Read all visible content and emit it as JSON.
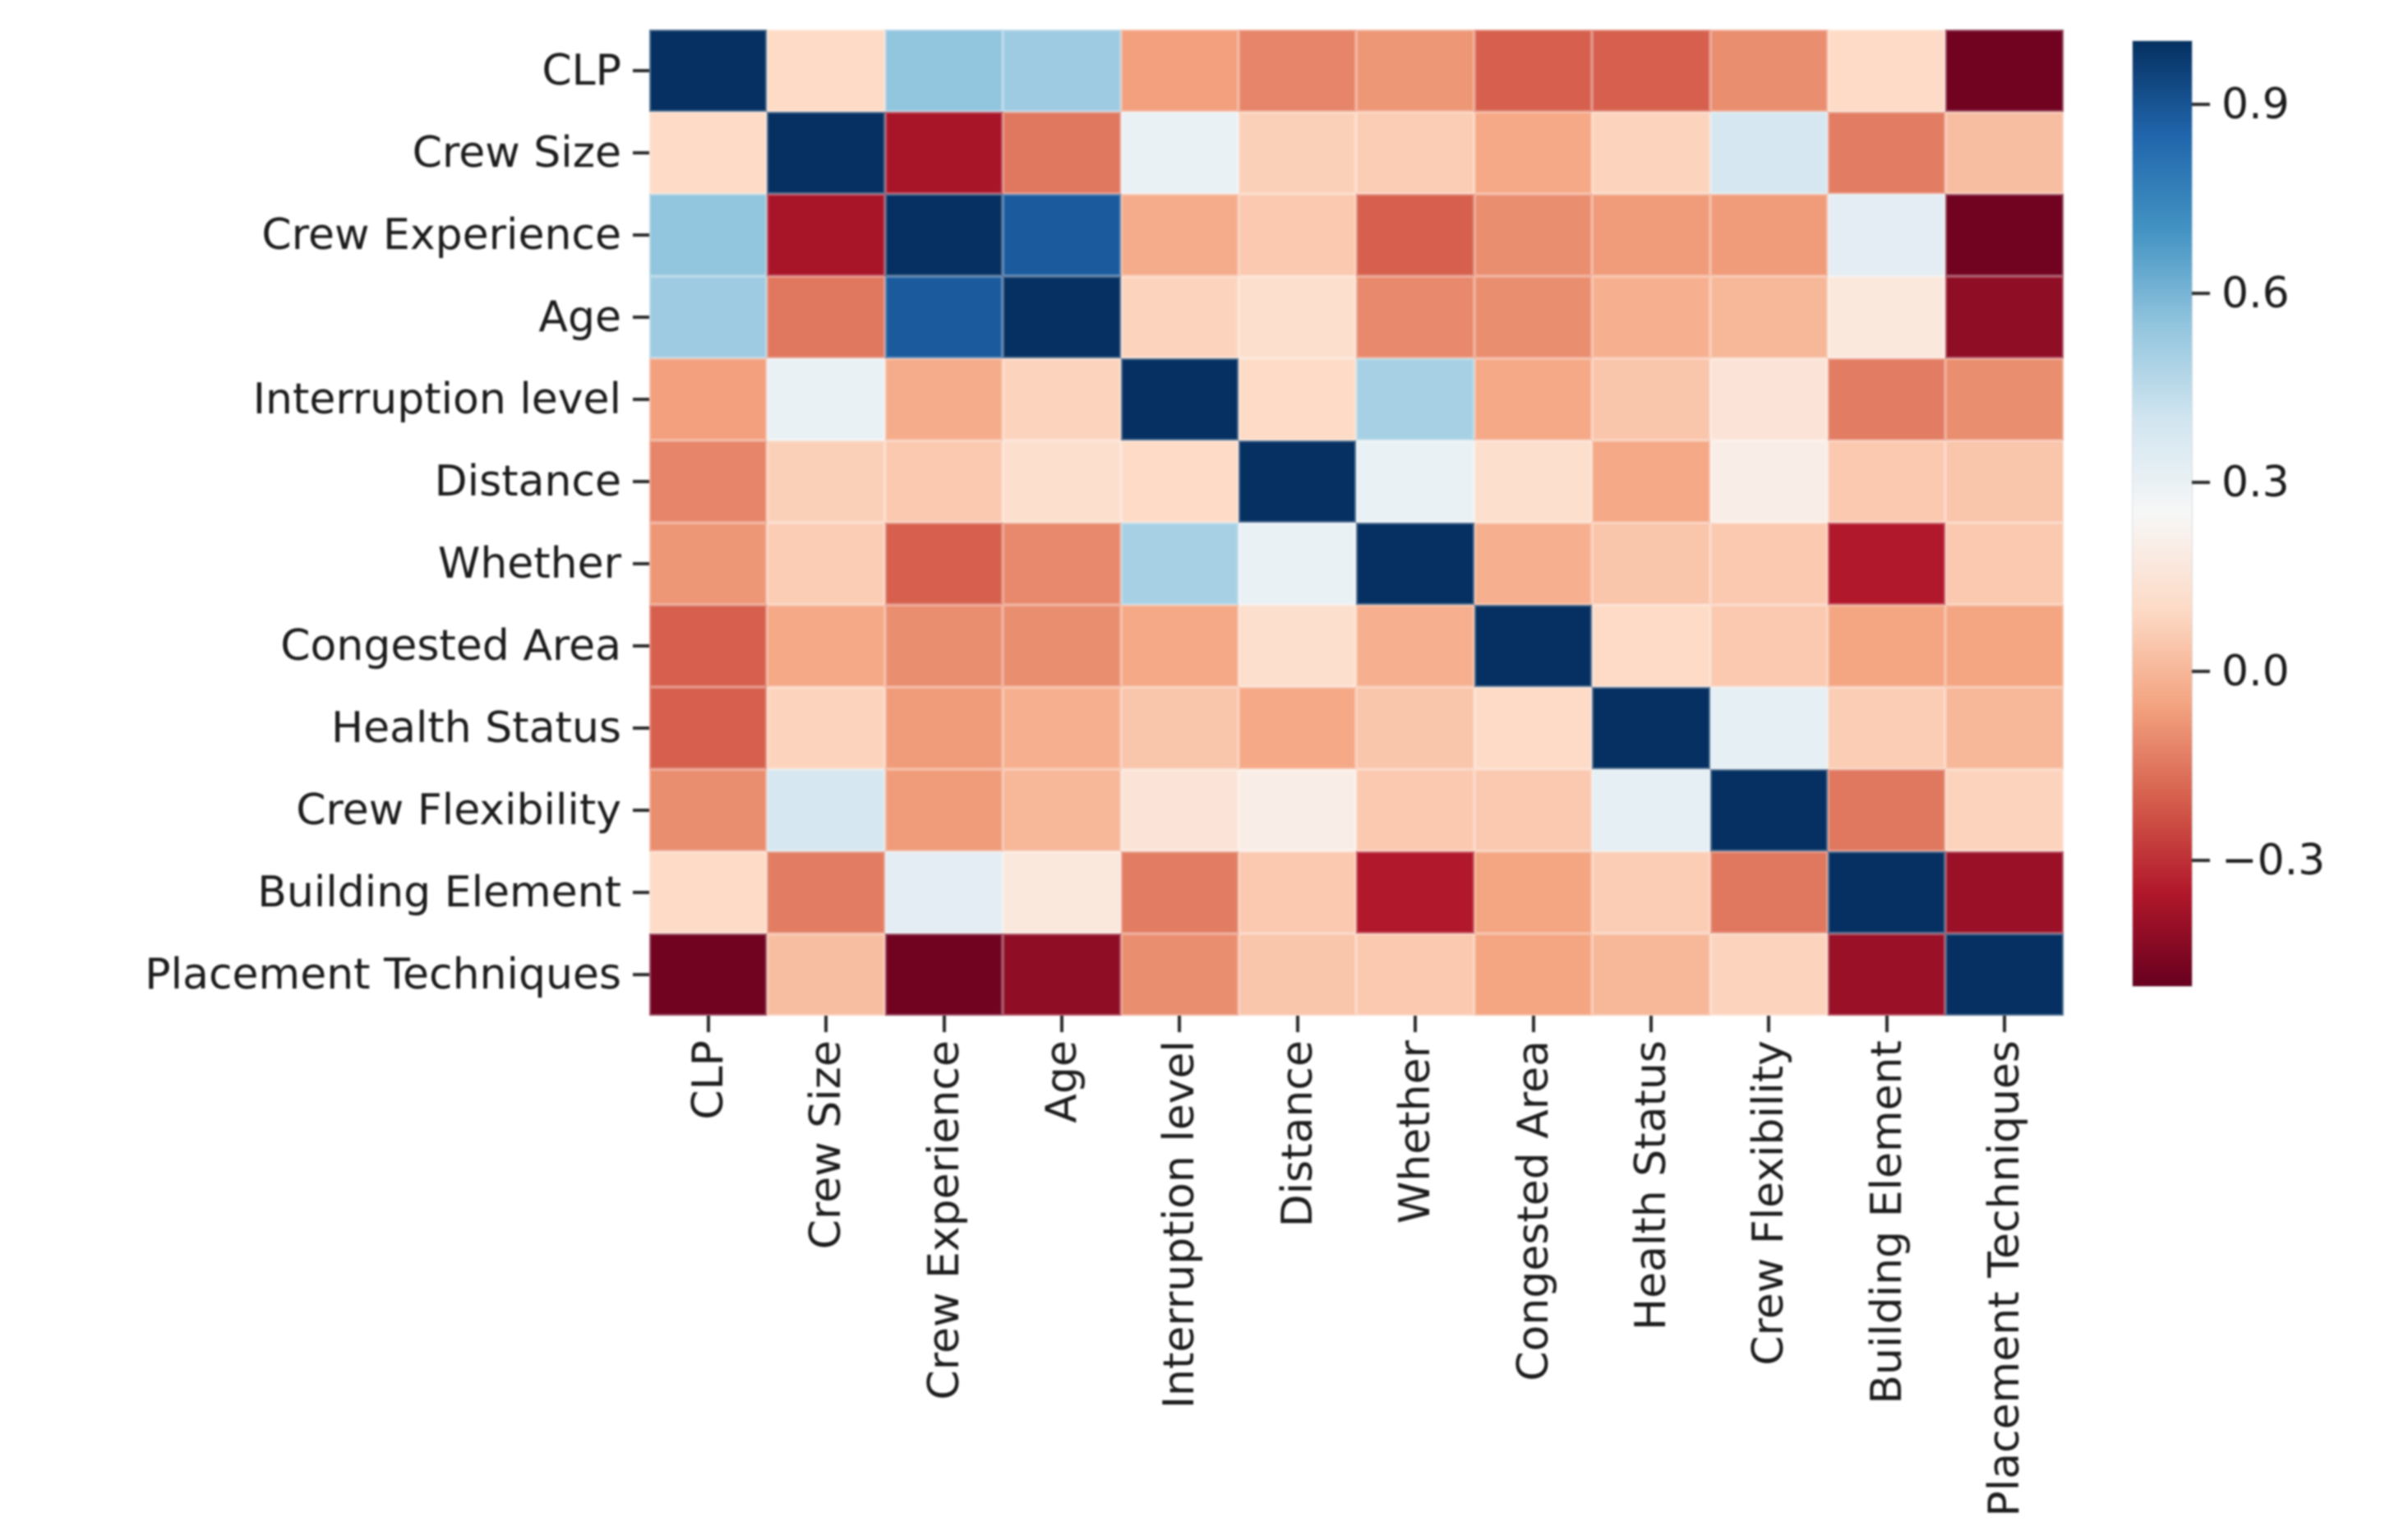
{
  "figure": {
    "background_color": "#ffffff",
    "text_color": "#1c1c1c",
    "title": ""
  },
  "chart_data": {
    "type": "heatmap",
    "title": "",
    "xlabel": "",
    "ylabel": "",
    "variables": [
      "CLP",
      "Crew Size",
      "Crew Experience",
      "Age",
      "Interruption level",
      "Distance",
      "Whether",
      "Congested Area",
      "Health Status",
      "Crew Flexibility",
      "Building Element",
      "Placement Techniques"
    ],
    "x_tick_labels": [
      "CLP",
      "Crew Size",
      "Crew Experience",
      "Age",
      "Interruption level",
      "Distance",
      "Whether",
      "Congested Area",
      "Health Status",
      "Crew Flexibility",
      "Building Element",
      "Placement Techniques"
    ],
    "y_tick_labels": [
      "CLP",
      "Crew Size",
      "Crew Experience",
      "Age",
      "Interruption level",
      "Distance",
      "Whether",
      "Congested Area",
      "Health Status",
      "Crew Flexibility",
      "Building Element",
      "Placement Techniques"
    ],
    "matrix": [
      [
        1.0,
        0.1,
        0.55,
        0.52,
        -0.06,
        -0.12,
        -0.08,
        -0.2,
        -0.2,
        -0.1,
        0.1,
        -0.48
      ],
      [
        0.1,
        1.0,
        -0.37,
        -0.15,
        0.3,
        0.07,
        0.06,
        -0.04,
        0.08,
        0.38,
        -0.14,
        0.02
      ],
      [
        0.55,
        -0.37,
        1.0,
        0.88,
        -0.03,
        0.05,
        -0.2,
        -0.1,
        -0.07,
        -0.07,
        0.33,
        -0.48
      ],
      [
        0.52,
        -0.15,
        0.88,
        1.0,
        0.08,
        0.12,
        -0.11,
        -0.1,
        -0.02,
        0.0,
        0.17,
        -0.42
      ],
      [
        -0.06,
        0.3,
        -0.03,
        0.08,
        1.0,
        0.1,
        0.5,
        -0.04,
        0.04,
        0.15,
        -0.14,
        -0.1
      ],
      [
        -0.12,
        0.07,
        0.05,
        0.12,
        0.1,
        1.0,
        0.3,
        0.12,
        -0.04,
        0.2,
        0.05,
        0.04
      ],
      [
        -0.08,
        0.06,
        -0.2,
        -0.11,
        0.5,
        0.3,
        1.0,
        -0.02,
        0.04,
        0.05,
        -0.35,
        0.05
      ],
      [
        -0.2,
        -0.04,
        -0.1,
        -0.1,
        -0.04,
        0.12,
        -0.02,
        1.0,
        0.1,
        0.05,
        -0.05,
        -0.05
      ],
      [
        -0.2,
        0.08,
        -0.07,
        -0.02,
        0.04,
        -0.04,
        0.04,
        0.1,
        1.0,
        0.32,
        0.06,
        0.0
      ],
      [
        -0.1,
        0.38,
        -0.07,
        0.0,
        0.15,
        0.2,
        0.05,
        0.05,
        0.32,
        1.0,
        -0.15,
        0.08
      ],
      [
        0.1,
        -0.14,
        0.33,
        0.17,
        -0.14,
        0.05,
        -0.35,
        -0.05,
        0.06,
        -0.15,
        1.0,
        -0.4
      ],
      [
        -0.48,
        0.02,
        -0.48,
        -0.42,
        -0.1,
        0.04,
        0.05,
        -0.05,
        0.0,
        0.08,
        -0.4,
        1.0
      ]
    ],
    "colormap": "RdBu",
    "colormap_stops": [
      "#67001f",
      "#b2182b",
      "#d6604d",
      "#f4a582",
      "#fddbc7",
      "#f7f7f7",
      "#d1e5f0",
      "#92c5de",
      "#4393c3",
      "#2166ac",
      "#053061"
    ],
    "vmin": -0.5,
    "vmax": 1.0,
    "grid": false,
    "legend_position": "colorbar-right",
    "colorbar": {
      "tick_values": [
        0.9,
        0.6,
        0.3,
        0.0,
        -0.3
      ],
      "tick_labels": [
        "0.9",
        "0.6",
        "0.3",
        "0.0",
        "−0.3"
      ]
    }
  },
  "layout_hints": {
    "x_tick_label_rotation_deg": 90,
    "diagonal_value": 1.0
  }
}
